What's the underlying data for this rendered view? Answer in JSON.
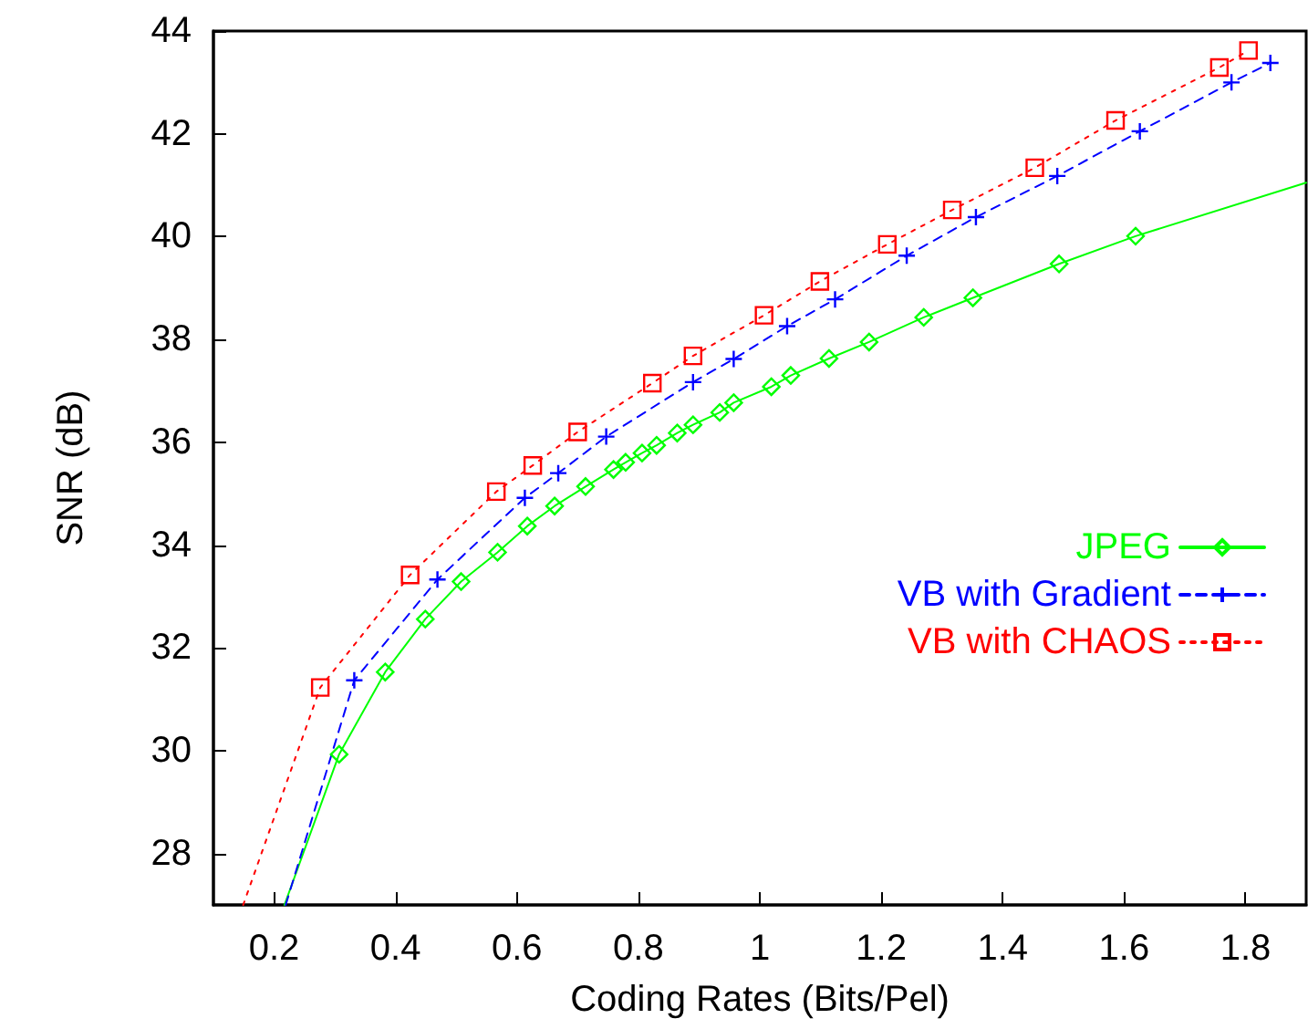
{
  "chart_data": {
    "type": "line",
    "xlabel": "Coding Rates (Bits/Pel)",
    "ylabel": "SNR (dB)",
    "xlim": [
      0.1,
      1.9
    ],
    "ylim": [
      27,
      44
    ],
    "xticks": [
      0.2,
      0.4,
      0.6,
      0.8,
      1,
      1.2,
      1.4,
      1.6,
      1.8
    ],
    "yticks": [
      28,
      30,
      32,
      34,
      36,
      38,
      40,
      42,
      44
    ],
    "grid": false,
    "legend": "right",
    "series": [
      {
        "name": "JPEG",
        "color": "#00ff00",
        "marker": "diamond",
        "line_style": "solid",
        "x": [
          0.217,
          0.307,
          0.383,
          0.449,
          0.508,
          0.568,
          0.617,
          0.662,
          0.713,
          0.759,
          0.779,
          0.806,
          0.83,
          0.864,
          0.89,
          0.934,
          0.957,
          1.019,
          1.051,
          1.114,
          1.18,
          1.27,
          1.351,
          1.493,
          1.619,
          1.9
        ],
        "values": [
          27,
          29.93,
          31.53,
          32.56,
          33.29,
          33.86,
          34.37,
          34.76,
          35.14,
          35.47,
          35.61,
          35.79,
          35.94,
          36.18,
          36.34,
          36.58,
          36.77,
          37.08,
          37.3,
          37.63,
          37.95,
          38.43,
          38.81,
          39.47,
          40.01,
          41.05
        ]
      },
      {
        "name": "VB with Gradient",
        "color": "#0000ff",
        "marker": "cross",
        "line_style": "dashed",
        "x": [
          0.219,
          0.332,
          0.469,
          0.613,
          0.668,
          0.747,
          0.89,
          0.957,
          1.045,
          1.124,
          1.242,
          1.356,
          1.49,
          1.626,
          1.777,
          1.841
        ],
        "values": [
          27,
          31.37,
          33.33,
          34.92,
          35.4,
          36.11,
          37.17,
          37.62,
          38.26,
          38.78,
          39.63,
          40.38,
          41.18,
          42.05,
          43.0,
          43.38
        ]
      },
      {
        "name": "VB with CHAOS",
        "color": "#ff0000",
        "marker": "square",
        "line_style": "dotted",
        "x": [
          0.149,
          0.276,
          0.424,
          0.566,
          0.626,
          0.7,
          0.823,
          0.89,
          1.007,
          1.099,
          1.21,
          1.317,
          1.453,
          1.586,
          1.757,
          1.805
        ],
        "values": [
          27,
          31.23,
          33.42,
          35.04,
          35.55,
          36.2,
          37.15,
          37.68,
          38.47,
          39.13,
          39.85,
          40.52,
          41.34,
          42.26,
          43.29,
          43.62
        ]
      }
    ]
  }
}
